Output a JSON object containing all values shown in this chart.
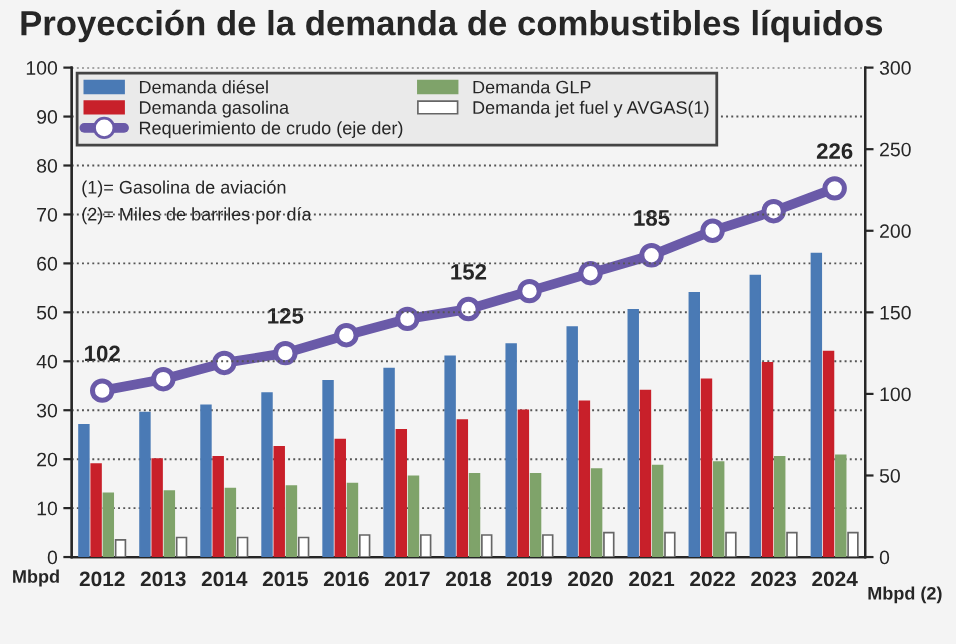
{
  "chart_data": {
    "type": "bar",
    "title": "Proyección de la demanda de combustibles líquidos",
    "categories": [
      "2012",
      "2013",
      "2014",
      "2015",
      "2016",
      "2017",
      "2018",
      "2019",
      "2020",
      "2021",
      "2022",
      "2023",
      "2024"
    ],
    "series": [
      {
        "name": "Demanda diésel",
        "color": "#4a7ab5",
        "values": [
          27,
          29.5,
          31,
          33.5,
          36,
          38.5,
          41,
          43.5,
          47,
          50.5,
          54,
          57.5,
          62
        ]
      },
      {
        "name": "Demanda gasolina",
        "color": "#c8202a",
        "values": [
          19,
          20,
          20.5,
          22.5,
          24,
          26,
          28,
          30,
          31.8,
          34,
          36.3,
          39.7,
          42
        ]
      },
      {
        "name": "Demanda GLP",
        "color": "#7fa36a",
        "values": [
          13,
          13.5,
          14,
          14.5,
          15,
          16.5,
          17,
          17,
          18,
          18.7,
          19.4,
          20.5,
          20.8
        ]
      },
      {
        "name": "Demanda jet fuel y AVGAS(1)",
        "color": "#ffffff",
        "values": [
          3.5,
          4,
          4,
          4,
          4.5,
          4.5,
          4.5,
          4.5,
          5,
          5,
          5,
          5,
          5
        ]
      },
      {
        "name": "Requerimiento de crudo (eje der)",
        "type": "line",
        "axis": "y2",
        "color": "#6a5aa8",
        "marker": "circle",
        "values": [
          102,
          109,
          119,
          125,
          136,
          146,
          152,
          163,
          174,
          185,
          200,
          212,
          226
        ],
        "value_labels": [
          "102",
          null,
          null,
          "125",
          null,
          null,
          "152",
          null,
          null,
          "185",
          null,
          null,
          "226"
        ]
      }
    ],
    "ylabel": "Mbpd",
    "y2label": "Mbpd (2)",
    "ylim": [
      0,
      100
    ],
    "yticks": [
      0,
      10,
      20,
      30,
      40,
      50,
      60,
      70,
      80,
      90,
      100
    ],
    "y2lim": [
      0,
      300
    ],
    "y2ticks": [
      0,
      50,
      100,
      150,
      200,
      250,
      300
    ],
    "grid": "y",
    "legend": "top left",
    "annotations": [
      "(1)= Gasolina de aviación",
      "(2)= Miles de barriles por día"
    ]
  }
}
